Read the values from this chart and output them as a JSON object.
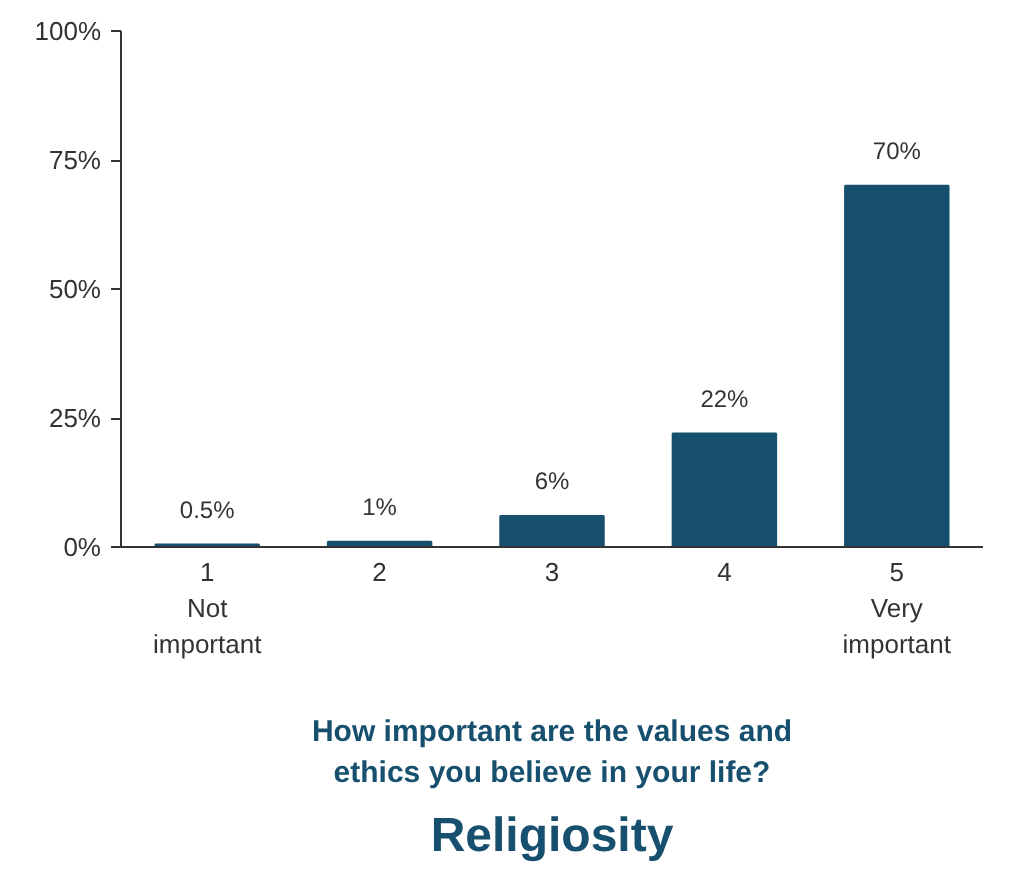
{
  "chart_data": {
    "type": "bar",
    "title": "Religiosity",
    "xlabel": "How important are the values and\nethics you believe in your life?",
    "categories": [
      "1\nNot\nimportant",
      "2",
      "3",
      "4",
      "5\nVery\nimportant"
    ],
    "values": [
      0.5,
      1,
      6,
      22,
      70
    ],
    "color": "#17506e",
    "value_labels": [
      "0.5%",
      "1%",
      "6%",
      "22%",
      "70%"
    ],
    "ylim": [
      0,
      100
    ],
    "yticks": [
      {
        "value": 0,
        "label": "0%"
      },
      {
        "value": 25,
        "label": "25%"
      },
      {
        "value": 50,
        "label": "50%"
      },
      {
        "value": 75,
        "label": "75%"
      },
      {
        "value": 100,
        "label": "100%"
      }
    ],
    "grid": false
  }
}
